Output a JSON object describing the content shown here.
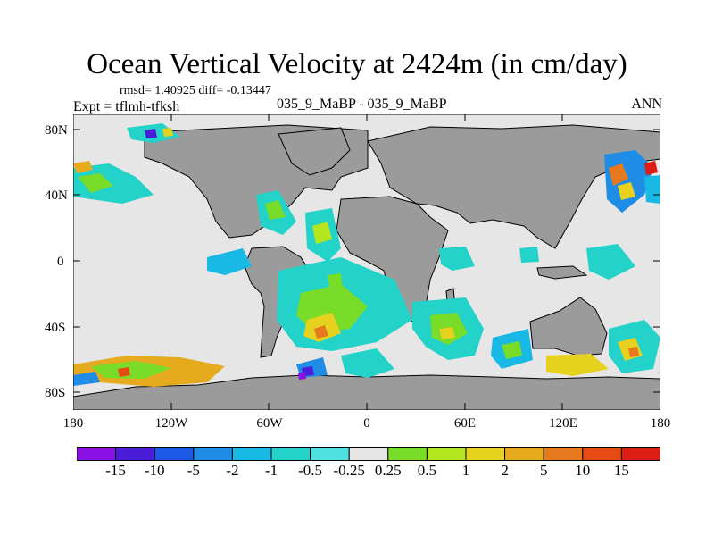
{
  "title": "Ocean Vertical Velocity at 2424m (in cm/day)",
  "stats": {
    "text": "rmsd= 1.40925 diff= -0.13447"
  },
  "experiment": {
    "text": "Expt = tflmh-tfksh"
  },
  "cases": {
    "text": "035_9_MaBP - 035_9_MaBP"
  },
  "season": {
    "text": "ANN"
  },
  "lat_ticks": [
    "80N",
    "40N",
    "0",
    "40S",
    "80S"
  ],
  "lon_ticks": [
    "180",
    "120W",
    "60W",
    "0",
    "60E",
    "120E",
    "180"
  ],
  "colorbar": {
    "labels": [
      "-15",
      "-10",
      "-5",
      "-2",
      "-1",
      "-0.5",
      "-0.25",
      "0.25",
      "0.5",
      "1",
      "2",
      "5",
      "10",
      "15"
    ],
    "colors": [
      "#8a12e6",
      "#4a1ed8",
      "#1c5ae6",
      "#1f8ce6",
      "#19b9e6",
      "#23d2c8",
      "#4fe0e0",
      "#e6e6e6",
      "#78dc28",
      "#b4e61e",
      "#e6d21e",
      "#e6aa1e",
      "#e6781e",
      "#e64b14",
      "#dc1e14"
    ]
  },
  "map_colors": {
    "land": "#9b9b9b",
    "ocean_neutral": "#e6e6e6",
    "frame": "#000000"
  }
}
